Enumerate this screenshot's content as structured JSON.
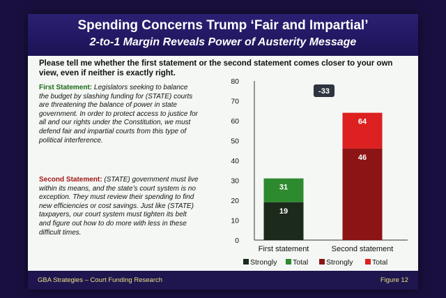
{
  "slide": {
    "title": "Spending Concerns Trump ‘Fair and Impartial’",
    "subtitle": "2-to-1 Margin Reveals Power of Austerity Message",
    "question": "Please tell me whether the first statement or the second statement comes closer to your own view, even if neither is exactly right.",
    "first_head": "First Statement:",
    "first_body": "Legislators seeking to balance the budget by slashing funding for (STATE) courts are threatening the balance of power in state government. In order to protect access to justice for all and our rights under the Constitution, we must defend fair and impartial courts from this type of political interference.",
    "second_head": "Second Statement:",
    "second_body": "(STATE) government must live within its means, and the state’s court system is no exception. They must review their spending to find new efficiencies or cost savings. Just like (STATE) taxpayers, our court system must tighten its belt and figure out how to do more with less in these difficult times.",
    "footer_left": "GBA Strategies – Court Funding Research",
    "footer_right": "Figure 12"
  },
  "chart_data": {
    "type": "bar",
    "stacked": true,
    "categories": [
      "First statement",
      "Second statement"
    ],
    "series": [
      {
        "name": "Strongly",
        "values": [
          19,
          46
        ]
      },
      {
        "name": "Total",
        "values": [
          31,
          64
        ]
      }
    ],
    "colors": {
      "first_strongly": "#1c2a1c",
      "first_total": "#2e8a2e",
      "second_strongly": "#8c1414",
      "second_total": "#dd2020"
    },
    "legend": [
      "Strongly",
      "Total",
      "Strongly",
      "Total"
    ],
    "annotation": "-33",
    "ylim": [
      0,
      80
    ],
    "yticks": [
      0,
      10,
      20,
      30,
      40,
      50,
      60,
      70,
      80
    ],
    "grid": false,
    "legend_placement": "bottom"
  }
}
